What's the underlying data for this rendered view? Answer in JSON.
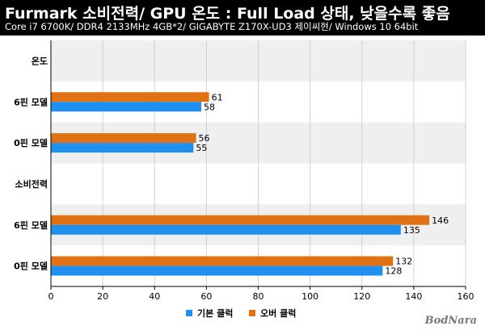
{
  "header": {
    "title": "Furmark 소비전력/ GPU 온도 : Full Load 상태, 낮을수록 좋음",
    "subtitle": "Core i7 6700K/ DDR4 2133MHz 4GB*2/ GIGABYTE Z170X-UD3 제이씨현/ Windows 10 64bit"
  },
  "watermark": "BodNara",
  "chart_data": {
    "type": "bar",
    "orientation": "horizontal",
    "categories": [
      "온도",
      "6핀 모델",
      "0핀 모델",
      "소비전력",
      "6핀 모델",
      "0핀 모델"
    ],
    "series": [
      {
        "name": "기본 클럭",
        "color": "#1f8ff0",
        "values": [
          null,
          58,
          55,
          null,
          135,
          128
        ]
      },
      {
        "name": "오버 클럭",
        "color": "#e07213",
        "values": [
          null,
          61,
          56,
          null,
          146,
          132
        ]
      }
    ],
    "xlim": [
      0,
      160
    ],
    "xticks": [
      0,
      20,
      40,
      60,
      80,
      100,
      120,
      140,
      160
    ],
    "grid": true,
    "legend_position": "bottom"
  }
}
